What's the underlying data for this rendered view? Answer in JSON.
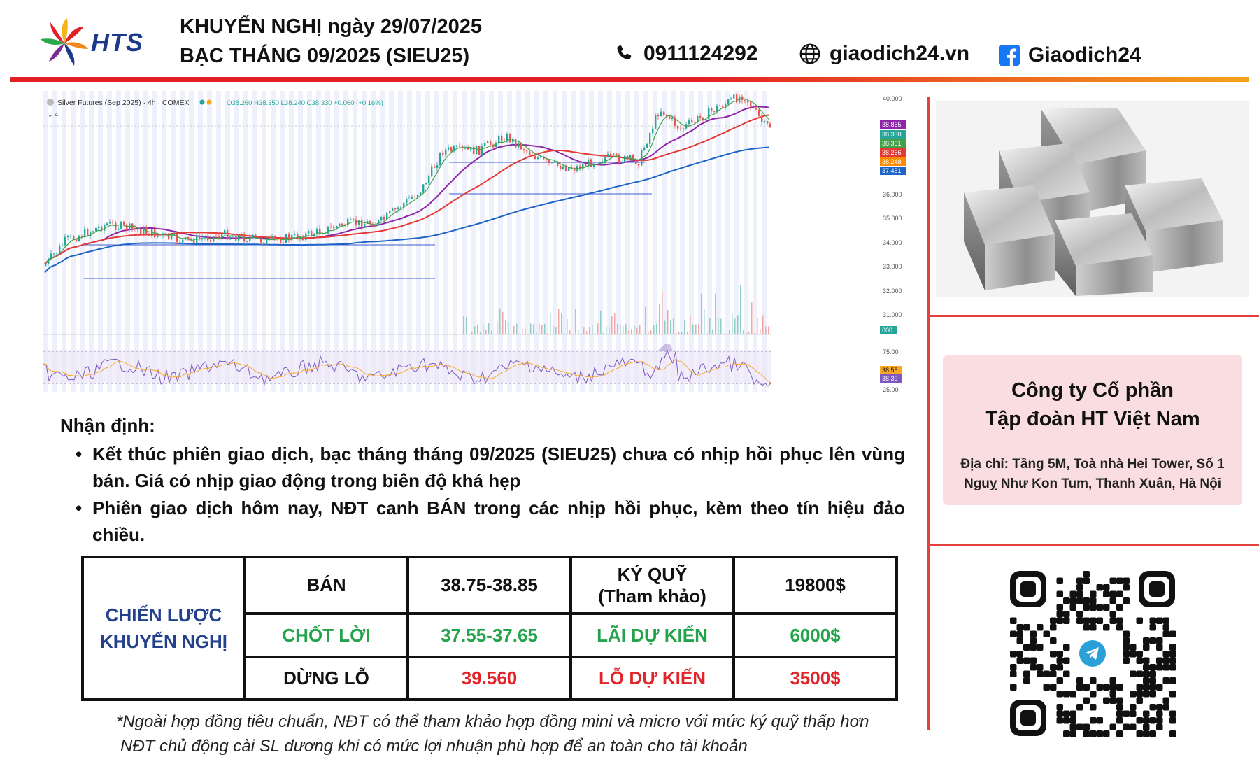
{
  "header": {
    "logo_text": "HTS",
    "title_line1": "KHUYẾN NGHỊ ngày 29/07/2025",
    "title_line2": "BẠC THÁNG 09/2025 (SIEU25)",
    "phone": "0911124292",
    "website": "giaodich24.vn",
    "facebook": "Giaodich24",
    "icons": [
      "phone-icon",
      "globe-icon",
      "facebook-icon"
    ],
    "bar_colors": [
      "#e31e24",
      "#f4a21b"
    ]
  },
  "chart": {
    "legend_title": "Silver Futures (Sep 2025) · 4h · COMEX",
    "legend_ohlc": "O38.260 H38.350 L38.240 C38.330 +0.060 (+0.16%)",
    "price_ticks": [
      "40.000",
      "36.000",
      "35.000",
      "34.000",
      "33.000",
      "32.000",
      "31.000"
    ],
    "price_badges": [
      {
        "label": "38.865",
        "color": "#8e24aa"
      },
      {
        "label": "38.330",
        "color": "#26a69a"
      },
      {
        "label": "38.301",
        "color": "#43a047"
      },
      {
        "label": "38.266",
        "color": "#e53935"
      },
      {
        "label": "38.248",
        "color": "#fb8c00"
      },
      {
        "label": "37.451",
        "color": "#1e63c6"
      }
    ],
    "volume_badge": "600",
    "rsi_ticks": [
      "75.00",
      "25.00"
    ],
    "rsi_badges": [
      {
        "label": "38.55",
        "color": "#f9a825"
      },
      {
        "label": "38.39",
        "color": "#7e57c2"
      }
    ]
  },
  "analysis": {
    "title": "Nhận định:",
    "bullets": [
      "Kết thúc phiên giao dịch, bạc tháng tháng 09/2025 (SIEU25) chưa có nhịp hồi phục lên vùng bán. Giá có nhịp giao động trong biên độ khá hẹp",
      "Phiên giao dịch hôm nay, NĐT canh BÁN trong các nhịp hồi phục, kèm theo tín hiệu đảo chiều."
    ]
  },
  "strategy": {
    "label": "CHIẾN LƯỢC\nKHUYẾN NGHỊ",
    "rows": [
      {
        "action": "BÁN",
        "price": "38.75-38.85",
        "metric": "KÝ QUỸ\n(Tham khảo)",
        "value": "19800$"
      },
      {
        "action": "CHỐT LỜI",
        "price": "37.55-37.65",
        "metric": "LÃI DỰ KIẾN",
        "value": "6000$"
      },
      {
        "action": "DỪNG LỖ",
        "price": "39.560",
        "metric": "LỖ DỰ KIẾN",
        "value": "3500$"
      }
    ]
  },
  "notes": [
    "*Ngoài hợp đồng tiêu chuẩn, NĐT có thể tham khảo hợp đồng mini và micro với mức ký quỹ thấp hơn",
    "NĐT chủ động cài SL dương khi có mức lợi nhuận phù hợp để an toàn cho tài khoản"
  ],
  "company": {
    "name": "Công ty Cổ phần\nTập đoàn HT Việt Nam",
    "address": "Địa chỉ:  Tầng 5M, Toà nhà Hei Tower, Số 1\nNguỵ Như Kon Tum, Thanh Xuân, Hà Nội"
  },
  "images": {
    "silver": "silver-bars-image",
    "qr": "telegram-qr-code"
  }
}
